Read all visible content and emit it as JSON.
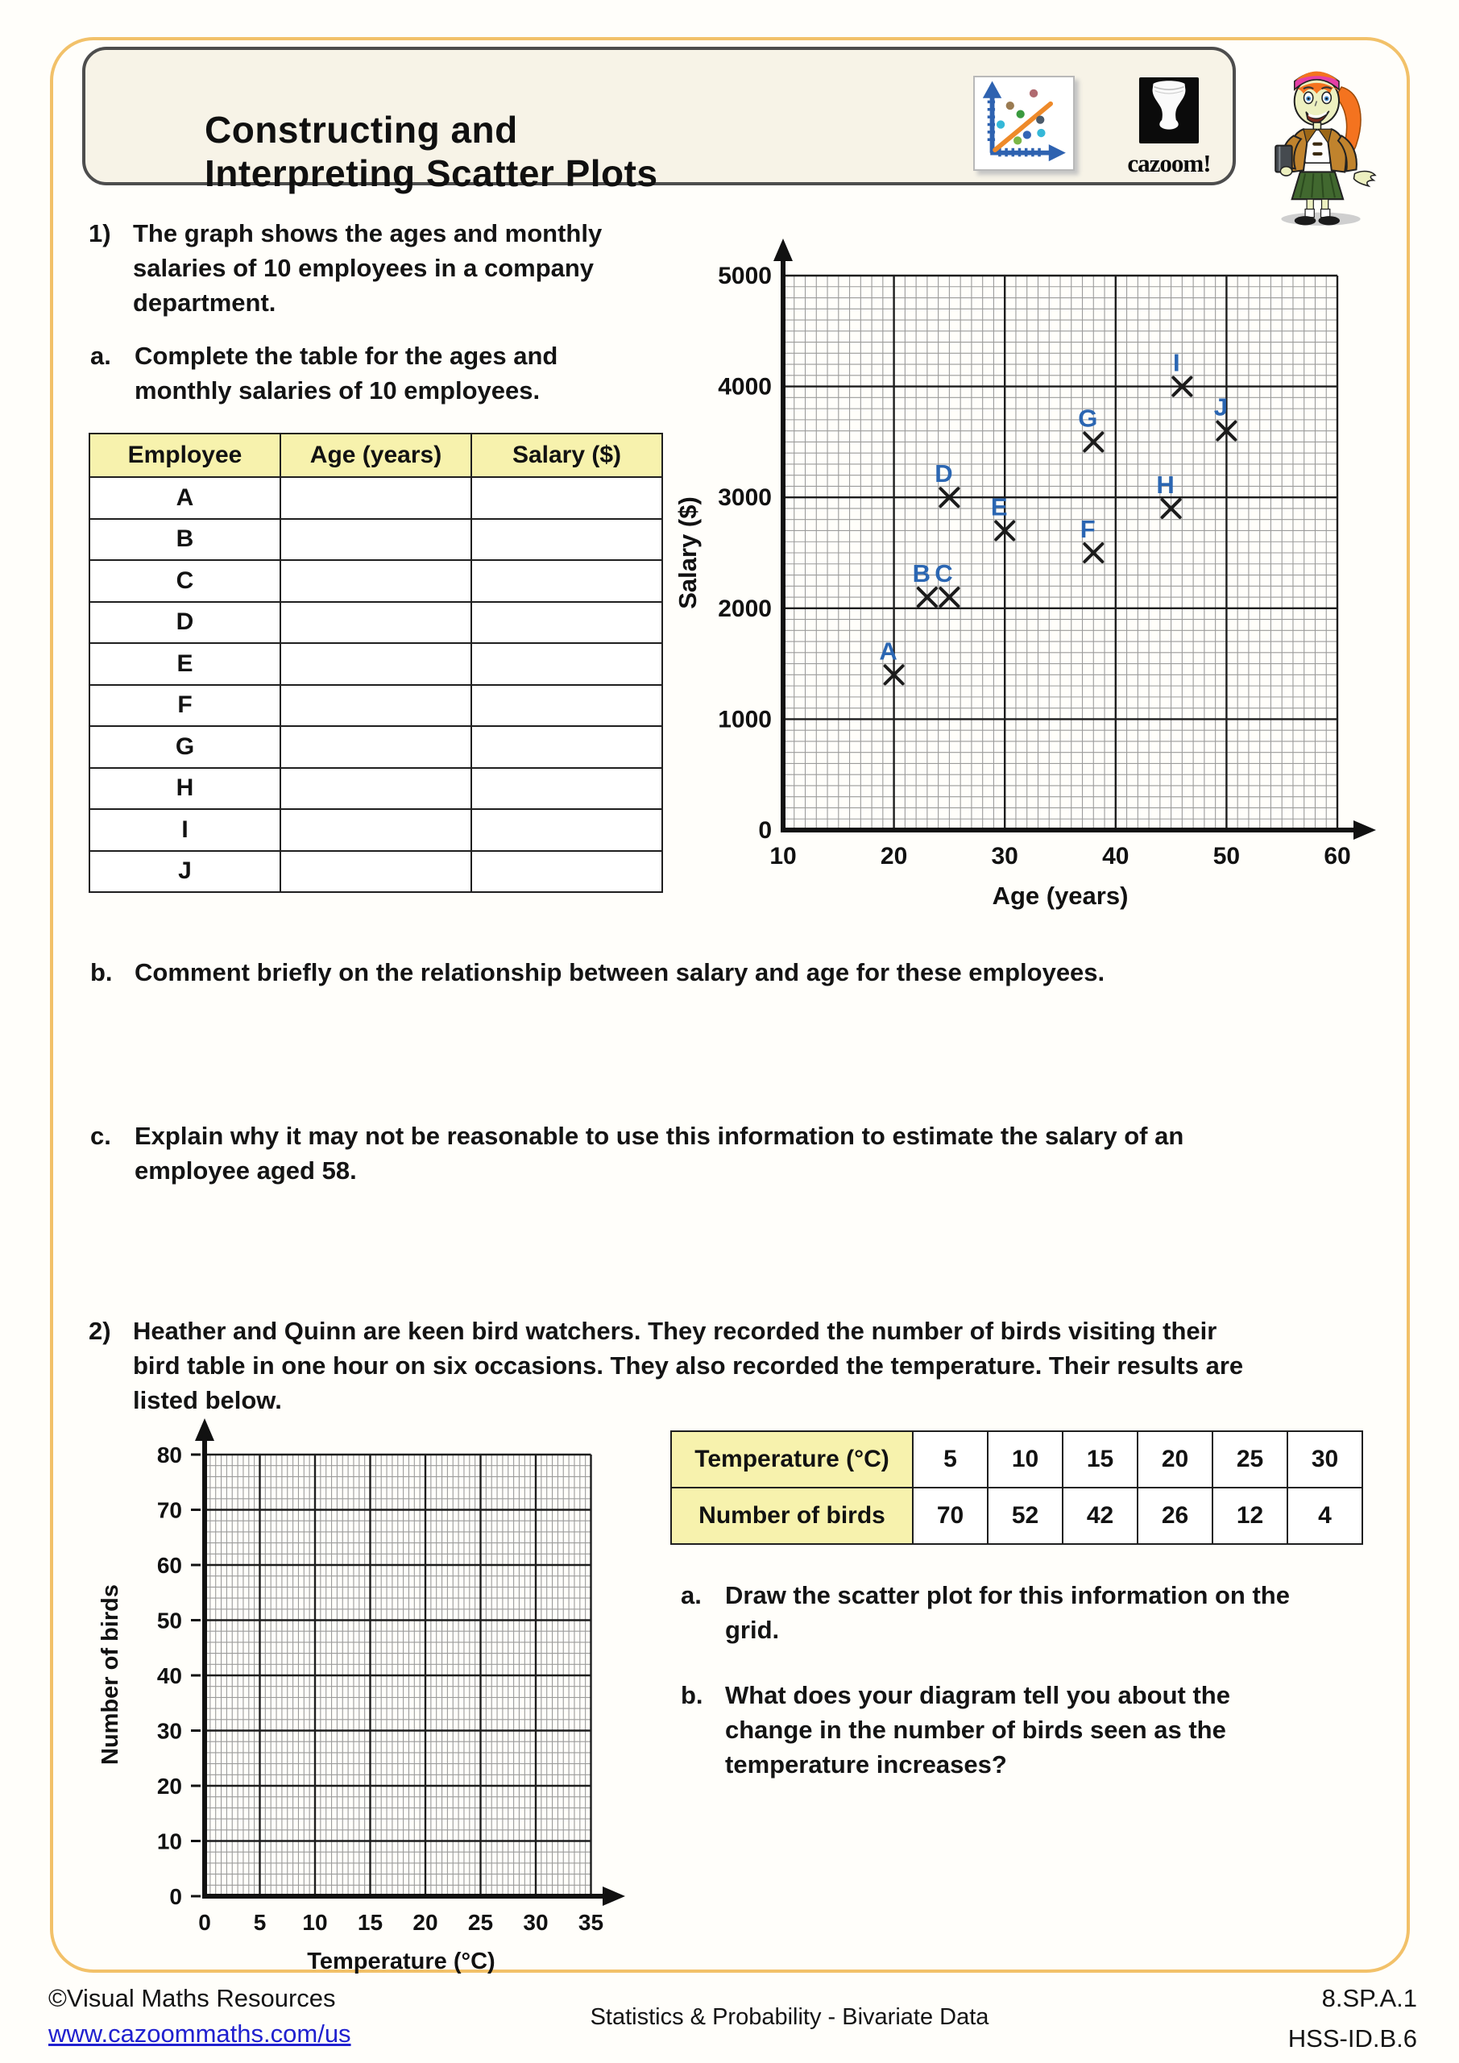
{
  "header": {
    "title_lines": [
      "Constructing and",
      "Interpreting Scatter Plots"
    ],
    "logo_text": "cazoom!",
    "icons": [
      "scatter-plot-icon",
      "drum-logo-icon",
      "girl-mascot-illustration"
    ]
  },
  "q1": {
    "number": "1)",
    "lines": [
      "The graph shows the ages and monthly",
      "salaries of 10 employees in a company",
      "department."
    ],
    "part_a": {
      "label": "a.",
      "lines": [
        "Complete the table for the ages and",
        "monthly salaries of 10 employees."
      ]
    },
    "part_b": {
      "label": "b.",
      "lines": [
        "Comment briefly on the relationship between salary and age for these employees."
      ]
    },
    "part_c": {
      "label": "c.",
      "lines": [
        "Explain why it may not be reasonable to use this information to estimate the salary of an",
        "employee aged 58."
      ]
    },
    "table": {
      "headers": [
        "Employee",
        "Age (years)",
        "Salary ($)"
      ],
      "rows": [
        "A",
        "B",
        "C",
        "D",
        "E",
        "F",
        "G",
        "H",
        "I",
        "J"
      ]
    }
  },
  "q2": {
    "number": "2)",
    "lines": [
      "Heather and Quinn are keen bird watchers. They recorded the number of birds visiting their",
      "bird table in one hour on six occasions. They also recorded the temperature. Their results are",
      "listed below."
    ],
    "table": {
      "rows": [
        {
          "header": "Temperature (°C)",
          "values": [
            "5",
            "10",
            "15",
            "20",
            "25",
            "30"
          ]
        },
        {
          "header": "Number of birds",
          "values": [
            "70",
            "52",
            "42",
            "26",
            "12",
            "4"
          ]
        }
      ]
    },
    "part_a": {
      "label": "a.",
      "lines": [
        "Draw the scatter plot for this information on the",
        "grid."
      ]
    },
    "part_b": {
      "label": "b.",
      "lines": [
        "What does your diagram tell you about the",
        "change in the number of birds seen as the",
        "temperature increases?"
      ]
    }
  },
  "chart_data": [
    {
      "type": "scatter",
      "title": "",
      "xlabel": "Age (years)",
      "ylabel": "Salary ($)",
      "xlim": [
        10,
        60
      ],
      "ylim": [
        0,
        5000
      ],
      "x_tick_step": 10,
      "y_tick_step": 1000,
      "x_minor_step": 1,
      "y_minor_step": 100,
      "grid": true,
      "marker": "x",
      "point_label_color": "#2b66b2",
      "points": [
        {
          "label": "A",
          "x": 20,
          "y": 1400
        },
        {
          "label": "B",
          "x": 23,
          "y": 2100
        },
        {
          "label": "C",
          "x": 25,
          "y": 2100
        },
        {
          "label": "D",
          "x": 25,
          "y": 3000
        },
        {
          "label": "E",
          "x": 30,
          "y": 2700
        },
        {
          "label": "F",
          "x": 38,
          "y": 2500
        },
        {
          "label": "G",
          "x": 38,
          "y": 3500
        },
        {
          "label": "H",
          "x": 45,
          "y": 2900
        },
        {
          "label": "I",
          "x": 46,
          "y": 4000
        },
        {
          "label": "J",
          "x": 50,
          "y": 3600
        }
      ]
    },
    {
      "type": "scatter",
      "title": "",
      "xlabel": "Temperature (°C)",
      "ylabel": "Number of birds",
      "xlim": [
        0,
        35
      ],
      "ylim": [
        0,
        80
      ],
      "x_tick_step": 5,
      "y_tick_step": 10,
      "x_minor_step": 0.5,
      "y_minor_step": 2,
      "grid": true,
      "marker": "x",
      "points": []
    }
  ],
  "footer": {
    "copyright": "©Visual Maths Resources",
    "link": "www.cazoommaths.com/us",
    "center": "Statistics & Probability - Bivariate Data",
    "standards": [
      "8.SP.A.1",
      "HSS-ID.B.6"
    ]
  },
  "colors": {
    "page_border_orange": "#f2c169",
    "title_panel_cream": "#f7f3e7",
    "table_header_yellow": "#f7f2ad",
    "point_label_blue": "#2b66b2",
    "link_blue": "#2020cf",
    "icon_axis_blue": "#2e62b0",
    "icon_trend_orange": "#ee8a2a"
  }
}
